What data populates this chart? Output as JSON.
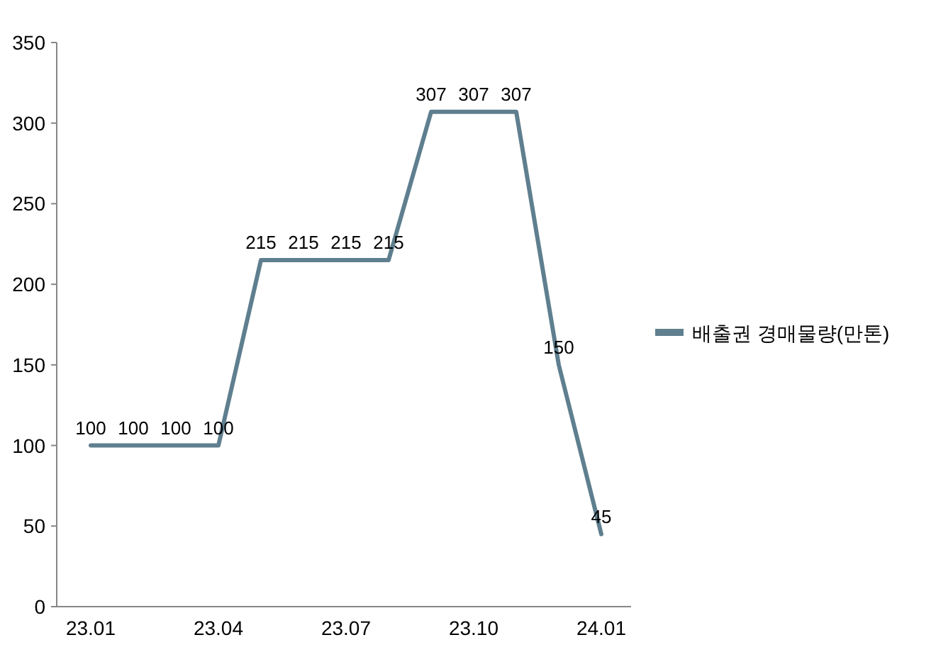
{
  "chart_data": {
    "type": "line",
    "categories": [
      "23.01",
      null,
      null,
      "23.04",
      null,
      null,
      "23.07",
      null,
      null,
      "23.10",
      null,
      null,
      "24.01"
    ],
    "series": [
      {
        "name": "배출권 경매물량(만톤)",
        "color": "#5f7f8f",
        "values": [
          100,
          100,
          100,
          100,
          215,
          215,
          215,
          215,
          307,
          307,
          307,
          150,
          45
        ]
      }
    ],
    "ylim": [
      0,
      350
    ],
    "yticks": [
      0,
      50,
      100,
      150,
      200,
      250,
      300,
      350
    ],
    "data_labels": true,
    "legend": "right"
  }
}
